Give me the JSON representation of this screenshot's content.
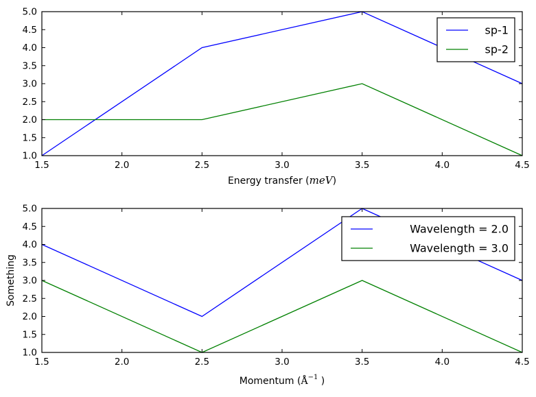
{
  "figure": {
    "background": "#ffffff",
    "text_color": "#000000",
    "axis_color": "#000000"
  },
  "chart_data": [
    {
      "type": "line",
      "name": "energy-transfer-plot",
      "x": [
        1.5,
        2.5,
        3.5,
        4.5
      ],
      "series": [
        {
          "name": "sp-1",
          "color": "#0000ff",
          "values": [
            1.0,
            4.0,
            5.0,
            3.0
          ]
        },
        {
          "name": "sp-2",
          "color": "#008000",
          "values": [
            2.0,
            2.0,
            3.0,
            1.0
          ]
        }
      ],
      "title": "",
      "ylabel": "",
      "xlabel_segments": [
        {
          "t": "Energy transfer ("
        },
        {
          "t": "meV",
          "style": "math"
        },
        {
          "t": ")"
        }
      ],
      "xlim": [
        1.5,
        4.5
      ],
      "ylim": [
        1.0,
        5.0
      ],
      "xticks": [
        1.5,
        2.0,
        2.5,
        3.0,
        3.5,
        4.0,
        4.5
      ],
      "xtick_labels": [
        "1.5",
        "2.0",
        "2.5",
        "3.0",
        "3.5",
        "4.0",
        "4.5"
      ],
      "yticks": [
        1.0,
        1.5,
        2.0,
        2.5,
        3.0,
        3.5,
        4.0,
        4.5,
        5.0
      ],
      "ytick_labels": [
        "1.0",
        "1.5",
        "2.0",
        "2.5",
        "3.0",
        "3.5",
        "4.0",
        "4.5",
        "5.0"
      ],
      "grid": false,
      "legend": {
        "position": "upper right",
        "entries": [
          "sp-1",
          "sp-2"
        ]
      }
    },
    {
      "type": "line",
      "name": "momentum-plot",
      "x": [
        1.5,
        2.5,
        3.5,
        4.5
      ],
      "series": [
        {
          "name": "Wavelength = 2.0",
          "color": "#0000ff",
          "values": [
            4.0,
            2.0,
            5.0,
            3.0
          ]
        },
        {
          "name": "Wavelength = 3.0",
          "color": "#008000",
          "values": [
            3.0,
            1.0,
            3.0,
            1.0
          ]
        }
      ],
      "title": "",
      "ylabel": "Something",
      "xlabel_segments": [
        {
          "t": "Momentum ("
        },
        {
          "t": "Å",
          "style": "mathrm"
        },
        {
          "t": "−1",
          "style": "sup"
        },
        {
          "t": " )"
        }
      ],
      "xlim": [
        1.5,
        4.5
      ],
      "ylim": [
        1.0,
        5.0
      ],
      "xticks": [
        1.5,
        2.0,
        2.5,
        3.0,
        3.5,
        4.0,
        4.5
      ],
      "xtick_labels": [
        "1.5",
        "2.0",
        "2.5",
        "3.0",
        "3.5",
        "4.0",
        "4.5"
      ],
      "yticks": [
        1.0,
        1.5,
        2.0,
        2.5,
        3.0,
        3.5,
        4.0,
        4.5,
        5.0
      ],
      "ytick_labels": [
        "1.0",
        "1.5",
        "2.0",
        "2.5",
        "3.0",
        "3.5",
        "4.0",
        "4.5",
        "5.0"
      ],
      "grid": false,
      "legend": {
        "position": "upper right",
        "entries": [
          "Wavelength = 2.0",
          "Wavelength = 3.0"
        ]
      }
    }
  ]
}
